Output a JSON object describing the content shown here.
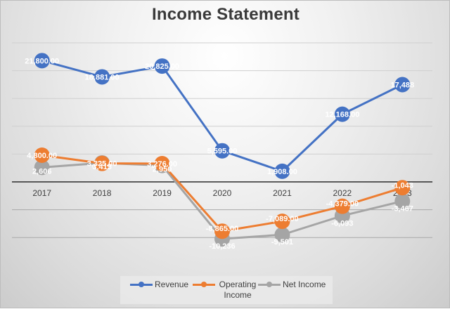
{
  "chart_data": {
    "type": "line",
    "title": "Income Statement",
    "xlabel": "",
    "ylabel": "",
    "categories": [
      "2017",
      "2018",
      "2019",
      "2020",
      "2021",
      "2022",
      "2023"
    ],
    "series": [
      {
        "name": "Revenue",
        "color": "#4472C4",
        "values": [
          21800,
          18881,
          20825,
          5595,
          1908,
          12168,
          17488
        ],
        "labels": [
          "21,800.00",
          "18,881.00",
          "20,825.00",
          "5,595.00",
          "1,908.00",
          "12,168.00",
          "17,488"
        ]
      },
      {
        "name": "Operating Income",
        "color": "#ED7D31",
        "values": [
          4800,
          3325,
          3276,
          -8865,
          -7089,
          -4379,
          -1043
        ],
        "labels": [
          "4,800.00",
          "3,325.00",
          "3,276.00",
          "-8,865.00",
          "-7,089.00",
          "-4,379.00",
          "-1,043"
        ]
      },
      {
        "name": "Net Income",
        "color": "#A5A5A5",
        "values": [
          2606,
          3415,
          2950,
          -10236,
          -9501,
          -6093,
          -3467
        ],
        "labels": [
          "2,606",
          "3,415",
          "2,950",
          "-10,236",
          "-9,501",
          "-6,093",
          "-3,467"
        ]
      }
    ],
    "ylim": [
      -15000,
      25000
    ],
    "y_gridline_step": 5000,
    "grid": true,
    "y_axis_labels_visible": false,
    "legend_position": "bottom"
  },
  "legend": {
    "items": [
      {
        "label": "Revenue",
        "color": "#4472C4"
      },
      {
        "label": "Operating\nIncome",
        "color": "#ED7D31"
      },
      {
        "label": "Net Income",
        "color": "#A5A5A5"
      }
    ]
  }
}
